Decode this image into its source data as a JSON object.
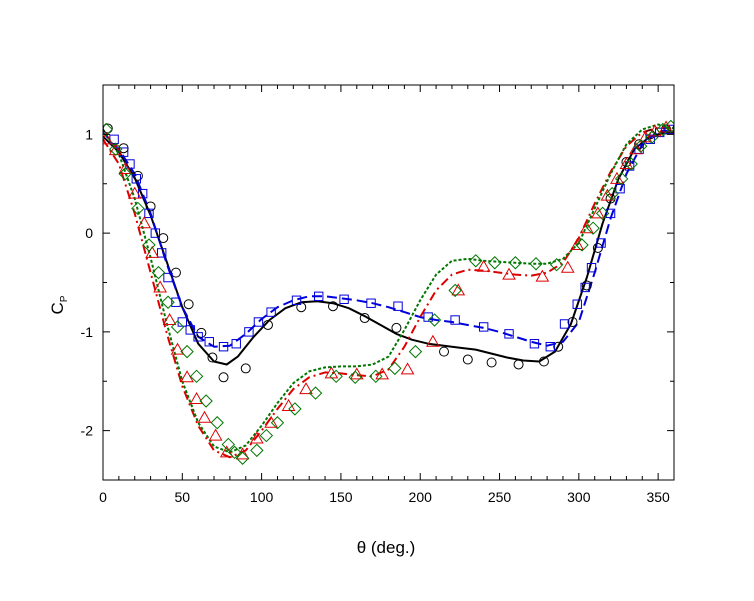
{
  "chart_data": {
    "type": "line",
    "title": "",
    "xlabel": "θ (deg.)",
    "ylabel": "C",
    "ylabel_subscript": "P",
    "xlim": [
      0,
      360
    ],
    "ylim": [
      -2.5,
      1.5
    ],
    "xticks": [
      0,
      50,
      100,
      150,
      200,
      250,
      300,
      350
    ],
    "yticks": [
      1,
      0,
      -1,
      -2
    ],
    "grid": false,
    "legend": "none",
    "series": [
      {
        "style": "line",
        "dash": "solid",
        "color": "#000000",
        "x": [
          0,
          10,
          20,
          30,
          40,
          50,
          60,
          70,
          78,
          85,
          95,
          105,
          115,
          125,
          135,
          145,
          155,
          165,
          175,
          185,
          195,
          205,
          215,
          225,
          235,
          245,
          255,
          265,
          275,
          285,
          295,
          305,
          315,
          325,
          335,
          345,
          355,
          360
        ],
        "y": [
          0.98,
          0.82,
          0.56,
          0.18,
          -0.28,
          -0.75,
          -1.12,
          -1.3,
          -1.33,
          -1.25,
          -1.05,
          -0.88,
          -0.76,
          -0.7,
          -0.69,
          -0.71,
          -0.76,
          -0.84,
          -0.93,
          -1.02,
          -1.08,
          -1.12,
          -1.14,
          -1.16,
          -1.18,
          -1.22,
          -1.26,
          -1.29,
          -1.3,
          -1.2,
          -0.92,
          -0.45,
          0.1,
          0.55,
          0.85,
          0.98,
          1.02,
          1.02
        ]
      },
      {
        "style": "line",
        "dash": "dashed",
        "color": "#0000dd",
        "x": [
          0,
          10,
          20,
          30,
          40,
          50,
          60,
          70,
          80,
          90,
          100,
          110,
          120,
          130,
          140,
          150,
          160,
          170,
          180,
          190,
          200,
          210,
          220,
          230,
          240,
          250,
          260,
          270,
          280,
          290,
          300,
          310,
          320,
          330,
          340,
          350,
          360
        ],
        "y": [
          1.02,
          0.85,
          0.6,
          0.2,
          -0.3,
          -0.75,
          -1.05,
          -1.15,
          -1.14,
          -1.02,
          -0.87,
          -0.75,
          -0.68,
          -0.64,
          -0.64,
          -0.66,
          -0.68,
          -0.71,
          -0.75,
          -0.8,
          -0.85,
          -0.88,
          -0.9,
          -0.93,
          -0.96,
          -1.0,
          -1.05,
          -1.1,
          -1.14,
          -1.1,
          -0.9,
          -0.4,
          0.15,
          0.6,
          0.9,
          1.03,
          1.04
        ]
      },
      {
        "style": "line",
        "dash": "dashdot",
        "color": "#dd0000",
        "x": [
          0,
          10,
          20,
          30,
          40,
          50,
          60,
          70,
          80,
          90,
          100,
          110,
          120,
          130,
          140,
          150,
          160,
          170,
          180,
          190,
          200,
          210,
          220,
          230,
          240,
          250,
          260,
          270,
          280,
          290,
          300,
          310,
          320,
          330,
          340,
          350,
          360
        ],
        "y": [
          0.95,
          0.7,
          0.2,
          -0.4,
          -1.0,
          -1.55,
          -1.95,
          -2.2,
          -2.27,
          -2.2,
          -2.0,
          -1.78,
          -1.58,
          -1.46,
          -1.41,
          -1.42,
          -1.44,
          -1.45,
          -1.38,
          -1.15,
          -0.85,
          -0.58,
          -0.42,
          -0.37,
          -0.38,
          -0.4,
          -0.42,
          -0.43,
          -0.4,
          -0.3,
          -0.05,
          0.3,
          0.62,
          0.88,
          1.02,
          1.07,
          1.06
        ]
      },
      {
        "style": "line",
        "dash": "dotted",
        "color": "#007700",
        "x": [
          0,
          10,
          20,
          30,
          40,
          50,
          60,
          70,
          80,
          90,
          100,
          110,
          120,
          130,
          140,
          150,
          160,
          170,
          180,
          190,
          200,
          210,
          220,
          230,
          240,
          250,
          260,
          270,
          280,
          290,
          300,
          310,
          320,
          330,
          340,
          350,
          360
        ],
        "y": [
          1.05,
          0.8,
          0.35,
          -0.25,
          -0.9,
          -1.5,
          -1.92,
          -2.16,
          -2.22,
          -2.15,
          -1.95,
          -1.72,
          -1.52,
          -1.4,
          -1.36,
          -1.35,
          -1.35,
          -1.33,
          -1.25,
          -0.98,
          -0.68,
          -0.42,
          -0.28,
          -0.26,
          -0.28,
          -0.29,
          -0.3,
          -0.31,
          -0.31,
          -0.26,
          -0.1,
          0.25,
          0.6,
          0.9,
          1.05,
          1.1,
          1.06
        ]
      },
      {
        "style": "markers",
        "marker": "circle",
        "color": "#000000",
        "x": [
          3,
          13,
          22,
          30,
          38,
          46,
          54,
          62,
          69,
          76,
          90,
          104,
          125,
          145,
          165,
          185,
          215,
          230,
          245,
          262,
          278,
          287,
          296,
          305,
          312,
          320,
          330,
          338,
          345,
          355
        ],
        "y": [
          1.06,
          0.86,
          0.58,
          0.27,
          -0.05,
          -0.4,
          -0.72,
          -1.01,
          -1.26,
          -1.46,
          -1.37,
          -0.93,
          -0.75,
          -0.74,
          -0.86,
          -0.96,
          -1.2,
          -1.28,
          -1.31,
          -1.33,
          -1.3,
          -1.15,
          -0.9,
          -0.53,
          -0.15,
          0.35,
          0.72,
          0.9,
          1.0,
          1.05
        ]
      },
      {
        "style": "markers",
        "marker": "square",
        "color": "#0000dd",
        "x": [
          7,
          13,
          17,
          21,
          25,
          29,
          33,
          37,
          41,
          46,
          50,
          55,
          60,
          67,
          76,
          84,
          92,
          98,
          106,
          122,
          136,
          152,
          169,
          186,
          205,
          222,
          240,
          256,
          272,
          282,
          291,
          299,
          304,
          308,
          314,
          320,
          326,
          332,
          338,
          345,
          351,
          357
        ],
        "y": [
          0.95,
          0.82,
          0.7,
          0.55,
          0.4,
          0.2,
          0.0,
          -0.2,
          -0.45,
          -0.7,
          -0.9,
          -0.98,
          -1.05,
          -1.1,
          -1.15,
          -1.12,
          -1.0,
          -0.9,
          -0.8,
          -0.68,
          -0.64,
          -0.67,
          -0.71,
          -0.74,
          -0.85,
          -0.88,
          -0.95,
          -1.02,
          -1.12,
          -1.15,
          -0.92,
          -0.72,
          -0.55,
          -0.35,
          -0.1,
          0.2,
          0.45,
          0.68,
          0.85,
          0.95,
          1.02,
          1.05
        ]
      },
      {
        "style": "markers",
        "marker": "triangle",
        "color": "#dd0000",
        "x": [
          2,
          8,
          14,
          20,
          26,
          31,
          36,
          42,
          47,
          53,
          59,
          64,
          71,
          78,
          88,
          97,
          106,
          117,
          128,
          144,
          160,
          176,
          192,
          208,
          224,
          240,
          256,
          277,
          293,
          299,
          305,
          312,
          318,
          324,
          330,
          336,
          342,
          348,
          355
        ],
        "y": [
          0.95,
          0.84,
          0.65,
          0.4,
          0.1,
          -0.2,
          -0.55,
          -0.88,
          -1.18,
          -1.46,
          -1.68,
          -1.87,
          -2.05,
          -2.22,
          -2.24,
          -2.08,
          -1.92,
          -1.75,
          -1.58,
          -1.42,
          -1.43,
          -1.43,
          -1.38,
          -1.1,
          -0.58,
          -0.34,
          -0.42,
          -0.44,
          -0.35,
          -0.12,
          0.05,
          0.2,
          0.38,
          0.55,
          0.7,
          0.85,
          0.97,
          1.03,
          1.07
        ]
      },
      {
        "style": "markers",
        "marker": "diamond",
        "color": "#007700",
        "x": [
          2,
          8,
          14,
          22,
          29,
          35,
          41,
          47,
          53,
          59,
          65,
          72,
          79,
          83,
          88,
          97,
          103,
          110,
          121,
          134,
          147,
          159,
          172,
          184,
          197,
          209,
          222,
          235,
          247,
          260,
          273,
          286,
          302,
          309,
          315,
          321,
          327,
          333,
          339,
          346,
          353,
          358
        ],
        "y": [
          1.05,
          0.85,
          0.6,
          0.25,
          -0.12,
          -0.4,
          -0.7,
          -0.95,
          -1.2,
          -1.45,
          -1.7,
          -1.92,
          -2.14,
          -2.22,
          -2.28,
          -2.2,
          -2.05,
          -1.92,
          -1.78,
          -1.62,
          -1.45,
          -1.46,
          -1.45,
          -1.37,
          -1.2,
          -0.88,
          -0.58,
          -0.28,
          -0.3,
          -0.3,
          -0.31,
          -0.32,
          -0.12,
          0.05,
          0.2,
          0.4,
          0.55,
          0.7,
          0.88,
          0.97,
          1.05,
          1.08
        ]
      }
    ]
  }
}
